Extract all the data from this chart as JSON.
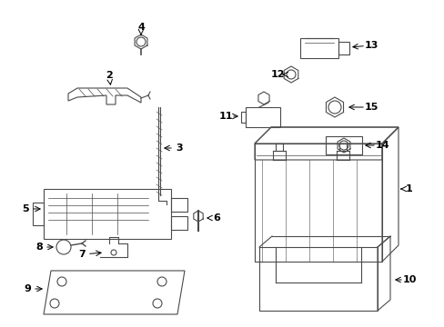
{
  "bg_color": "#ffffff",
  "lc": "#4a4a4a",
  "lw": 0.8,
  "fig_w": 4.89,
  "fig_h": 3.6,
  "dpi": 100
}
